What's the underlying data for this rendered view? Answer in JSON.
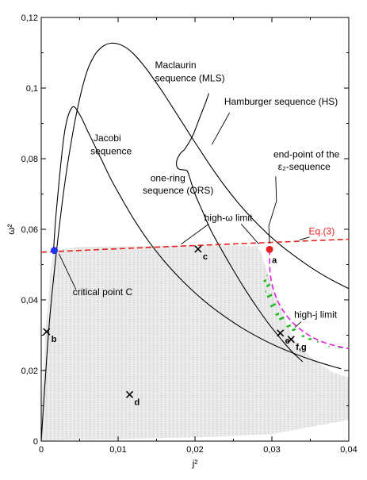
{
  "chart_data": {
    "type": "line",
    "title": "",
    "xlabel": "j²",
    "ylabel": "ω²",
    "xlim": [
      0,
      0.04
    ],
    "ylim": [
      0,
      0.12
    ],
    "grid": false,
    "x_ticks": [
      {
        "value": 0,
        "label": "0"
      },
      {
        "value": 0.01,
        "label": "0,01"
      },
      {
        "value": 0.02,
        "label": "0,02"
      },
      {
        "value": 0.03,
        "label": "0,03"
      },
      {
        "value": 0.04,
        "label": "0,04"
      }
    ],
    "y_ticks": [
      {
        "value": 0,
        "label": "0"
      },
      {
        "value": 0.02,
        "label": "0,02"
      },
      {
        "value": 0.04,
        "label": "0,04"
      },
      {
        "value": 0.06,
        "label": "0,06"
      },
      {
        "value": 0.08,
        "label": "0,08"
      },
      {
        "value": 0.1,
        "label": "0,1"
      },
      {
        "value": 0.12,
        "label": "0,12"
      }
    ],
    "series": [
      {
        "name": "Maclaurin sequence (MLS)",
        "color": "#000000",
        "x": [
          0.0,
          0.001,
          0.002,
          0.003,
          0.004,
          0.005,
          0.006,
          0.007,
          0.008,
          0.009,
          0.01,
          0.011,
          0.012,
          0.013,
          0.014,
          0.015,
          0.016,
          0.017,
          0.018,
          0.019,
          0.02,
          0.021,
          0.022,
          0.023,
          0.024,
          0.026,
          0.028,
          0.03,
          0.032,
          0.034,
          0.036,
          0.038,
          0.04
        ],
        "y": [
          0.0,
          0.032,
          0.054,
          0.072,
          0.086,
          0.097,
          0.105,
          0.1095,
          0.1118,
          0.1127,
          0.1125,
          0.1115,
          0.1097,
          0.1073,
          0.1045,
          0.1014,
          0.0982,
          0.0948,
          0.0914,
          0.088,
          0.0846,
          0.0813,
          0.078,
          0.0749,
          0.0719,
          0.0665,
          0.0618,
          0.0576,
          0.054,
          0.0508,
          0.0479,
          0.0454,
          0.0432
        ]
      },
      {
        "name": "Jacobi sequence",
        "color": "#000000",
        "x": [
          0.0016,
          0.002,
          0.003,
          0.004,
          0.005,
          0.006,
          0.007,
          0.008,
          0.009,
          0.01,
          0.012,
          0.014,
          0.016,
          0.018,
          0.02,
          0.022,
          0.024,
          0.026,
          0.028,
          0.03,
          0.032,
          0.034,
          0.036,
          0.038,
          0.039
        ],
        "y": [
          0.054,
          0.066,
          0.087,
          0.0945,
          0.0925,
          0.088,
          0.0835,
          0.079,
          0.0745,
          0.0705,
          0.063,
          0.0565,
          0.051,
          0.0462,
          0.042,
          0.0383,
          0.0351,
          0.0322,
          0.0297,
          0.0275,
          0.0256,
          0.0239,
          0.0224,
          0.0211,
          0.0205
        ]
      },
      {
        "name": "Hamburger sequence (HS)",
        "color": "#000000",
        "x": [
          0.0186,
          0.0192,
          0.0198,
          0.0206,
          0.0214,
          0.0218
        ],
        "y": [
          0.0825,
          0.0845,
          0.087,
          0.0915,
          0.096,
          0.0985
        ]
      },
      {
        "name": "one-ring sequence (ORS)",
        "color": "#000000",
        "x": [
          0.0186,
          0.018,
          0.0176,
          0.0178,
          0.0186,
          0.019,
          0.0194,
          0.02,
          0.021,
          0.022,
          0.0235,
          0.025,
          0.0265,
          0.028,
          0.0295,
          0.031,
          0.0325,
          0.034
        ],
        "y": [
          0.0825,
          0.0812,
          0.079,
          0.0772,
          0.0768,
          0.0765,
          0.074,
          0.07,
          0.065,
          0.06,
          0.054,
          0.0484,
          0.043,
          0.0381,
          0.0335,
          0.0294,
          0.0256,
          0.0225
        ]
      },
      {
        "name": "Eq.(3)",
        "color": "#e8221e",
        "dashed": true,
        "x": [
          0.0,
          0.01,
          0.02,
          0.03,
          0.04
        ],
        "y": [
          0.0535,
          0.0545,
          0.0554,
          0.0563,
          0.0572
        ]
      },
      {
        "name": "high-j limit",
        "color": "#e020e0",
        "dashed": true,
        "x": [
          0.0297,
          0.0297,
          0.0298,
          0.0302,
          0.0308,
          0.0316,
          0.0326,
          0.0338,
          0.0352,
          0.0367,
          0.0383,
          0.04
        ],
        "y": [
          0.0543,
          0.0505,
          0.047,
          0.043,
          0.0395,
          0.0365,
          0.0338,
          0.0315,
          0.0295,
          0.028,
          0.027,
          0.0262
        ]
      }
    ],
    "shaded_region": {
      "color": "#dddddd",
      "x": [
        0.0016,
        0.005,
        0.01,
        0.015,
        0.02,
        0.025,
        0.028,
        0.0286,
        0.029,
        0.03,
        0.031,
        0.032,
        0.033,
        0.0345,
        0.036,
        0.038,
        0.04,
        0.04,
        0.03,
        0.02,
        0.01,
        0.005,
        0.002,
        0.0,
        0.0,
        0.0006,
        0.0012
      ],
      "y": [
        0.054,
        0.055,
        0.0552,
        0.0553,
        0.0554,
        0.0554,
        0.0552,
        0.0535,
        0.0505,
        0.044,
        0.0385,
        0.033,
        0.0285,
        0.025,
        0.022,
        0.0195,
        0.018,
        0.006,
        0.002,
        0.001,
        0.0006,
        0.0004,
        0.0002,
        0.0,
        0.01,
        0.032,
        0.048
      ]
    },
    "hatched_region": {
      "color": "#22bb22",
      "x": [
        0.0288,
        0.0297,
        0.0298,
        0.0302,
        0.0308,
        0.0316,
        0.0326,
        0.0338,
        0.0352,
        0.0367,
        0.0383,
        0.0395,
        0.0375,
        0.0355,
        0.0335,
        0.0315,
        0.03,
        0.0292
      ],
      "y": [
        0.047,
        0.047,
        0.043,
        0.04,
        0.0375,
        0.035,
        0.0325,
        0.0305,
        0.029,
        0.0276,
        0.0268,
        0.0262,
        0.0266,
        0.028,
        0.03,
        0.033,
        0.037,
        0.042
      ]
    },
    "markers": [
      {
        "label": "critical point C",
        "x": 0.0017,
        "y": 0.054,
        "color": "#2233ee",
        "shape": "dot"
      },
      {
        "label": "a",
        "x": 0.0297,
        "y": 0.0543,
        "color": "#e8221e",
        "shape": "dot"
      },
      {
        "label": "b",
        "x": 0.0007,
        "y": 0.031,
        "color": "#000000",
        "shape": "cross"
      },
      {
        "label": "c",
        "x": 0.0204,
        "y": 0.0544,
        "color": "#000000",
        "shape": "cross"
      },
      {
        "label": "d",
        "x": 0.0115,
        "y": 0.0132,
        "color": "#000000",
        "shape": "cross"
      },
      {
        "label": "e",
        "x": 0.0311,
        "y": 0.0306,
        "color": "#000000",
        "shape": "cross"
      },
      {
        "label": "f,g",
        "x": 0.0325,
        "y": 0.0288,
        "color": "#000000",
        "shape": "cross"
      }
    ],
    "annotations": [
      {
        "text": "Maclaurin",
        "x": 0.0148,
        "y": 0.1056
      },
      {
        "text": "sequence (MLS)",
        "x": 0.0148,
        "y": 0.1019
      },
      {
        "text": "Hamburger sequence (HS)",
        "x": 0.0238,
        "y": 0.0953
      },
      {
        "text": "Jacobi",
        "x": 0.0068,
        "y": 0.0849
      },
      {
        "text": "sequence",
        "x": 0.0064,
        "y": 0.0812
      },
      {
        "text": "end-point of the",
        "x": 0.0302,
        "y": 0.0803
      },
      {
        "text": "ε₂-sequence",
        "x": 0.0308,
        "y": 0.0768
      },
      {
        "text": "one-ring",
        "x": 0.0142,
        "y": 0.0736
      },
      {
        "text": "sequence (ORS)",
        "x": 0.0132,
        "y": 0.0701
      },
      {
        "text": "high-ω limit",
        "x": 0.0212,
        "y": 0.0624
      },
      {
        "text": "Eq.(3)",
        "x": 0.0348,
        "y": 0.0585,
        "color": "#e8221e"
      },
      {
        "text": "critical point C",
        "x": 0.0041,
        "y": 0.0413
      },
      {
        "text": "high-j limit",
        "x": 0.0329,
        "y": 0.0349
      }
    ]
  }
}
